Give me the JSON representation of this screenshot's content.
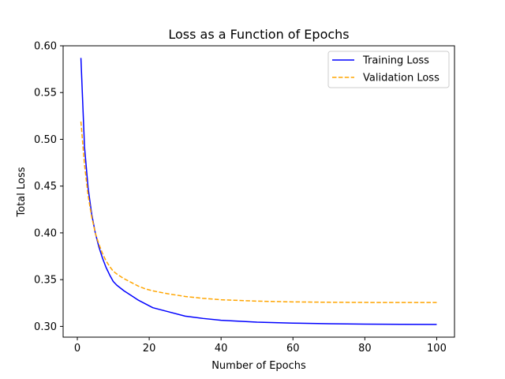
{
  "chart_data": {
    "type": "line",
    "title": "Loss as a Function of Epochs",
    "xlabel": "Number of Epochs",
    "ylabel": "Total Loss",
    "xlim": [
      -3.95,
      104.95
    ],
    "ylim": [
      0.2885,
      0.6
    ],
    "xticks": [
      0,
      20,
      40,
      60,
      80,
      100
    ],
    "xtick_labels": [
      "0",
      "20",
      "40",
      "60",
      "80",
      "100"
    ],
    "yticks": [
      0.3,
      0.35,
      0.4,
      0.45,
      0.5,
      0.55,
      0.6
    ],
    "ytick_labels": [
      "0.30",
      "0.35",
      "0.40",
      "0.45",
      "0.50",
      "0.55",
      "0.60"
    ],
    "grid": false,
    "legend_position": "top-right",
    "series": [
      {
        "name": "Training Loss",
        "color": "#0000ff",
        "style": "solid",
        "x": [
          1,
          2,
          3,
          4,
          5,
          6,
          7,
          8,
          9,
          10,
          11,
          13,
          15,
          17,
          19,
          21,
          25,
          30,
          35,
          40,
          50,
          60,
          70,
          80,
          90,
          100
        ],
        "y": [
          0.587,
          0.492,
          0.448,
          0.42,
          0.4,
          0.385,
          0.373,
          0.363,
          0.355,
          0.348,
          0.344,
          0.338,
          0.333,
          0.328,
          0.324,
          0.32,
          0.316,
          0.311,
          0.3085,
          0.3065,
          0.3045,
          0.3035,
          0.3028,
          0.3024,
          0.3022,
          0.3021
        ]
      },
      {
        "name": "Validation Loss",
        "color": "#ffa500",
        "style": "dashed",
        "x": [
          1,
          2,
          3,
          4,
          5,
          6,
          7,
          8,
          9,
          10,
          11,
          13,
          15,
          17,
          19,
          21,
          25,
          30,
          35,
          40,
          50,
          60,
          70,
          80,
          90,
          100
        ],
        "y": [
          0.519,
          0.473,
          0.44,
          0.417,
          0.4,
          0.388,
          0.378,
          0.37,
          0.364,
          0.359,
          0.356,
          0.351,
          0.347,
          0.343,
          0.34,
          0.338,
          0.335,
          0.332,
          0.33,
          0.3285,
          0.327,
          0.3262,
          0.3258,
          0.3256,
          0.3255,
          0.3255
        ]
      }
    ]
  }
}
